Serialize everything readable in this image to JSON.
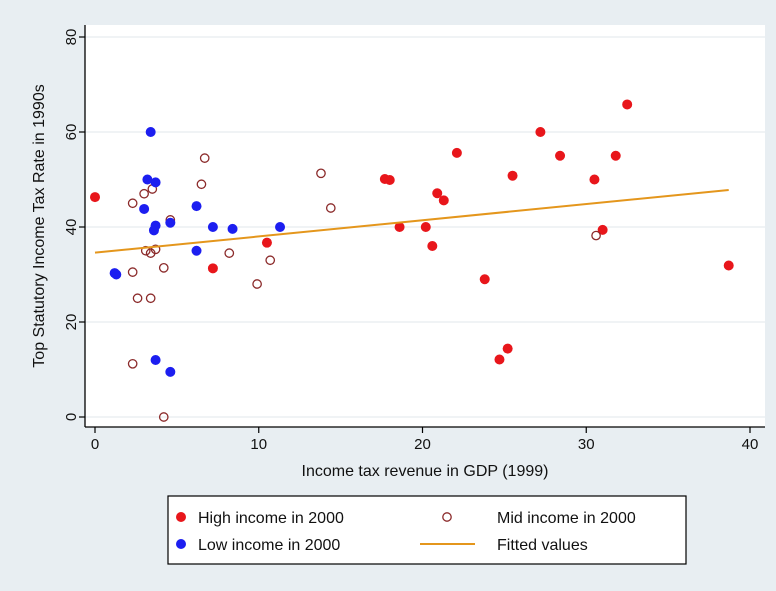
{
  "chart_data": {
    "type": "scatter",
    "title": "",
    "xlabel": "Income tax revenue in GDP (1999)",
    "ylabel": "Top Statutory Income Tax Rate in 1990s",
    "xlim": [
      0,
      40
    ],
    "ylim": [
      0,
      80
    ],
    "xticks": [
      "0",
      "10",
      "20",
      "30",
      "40"
    ],
    "yticks": [
      "0",
      "20",
      "40",
      "60",
      "80"
    ],
    "grid": "horizontal",
    "legend_position": "bottom",
    "colors": {
      "high": "#e8161b",
      "mid": "#8b2a2a",
      "low": "#1c1ef0",
      "fit": "#e4961c",
      "plot_bg": "#ffffff",
      "outer_bg": "#e8eef2"
    },
    "series": [
      {
        "name": "High income in 2000",
        "marker": "filled",
        "points": [
          [
            0,
            46.3
          ],
          [
            7.2,
            31.3
          ],
          [
            10.5,
            36.7
          ],
          [
            17.7,
            50.1
          ],
          [
            18.0,
            49.9
          ],
          [
            18.6,
            40
          ],
          [
            20.2,
            40
          ],
          [
            20.6,
            36
          ],
          [
            20.9,
            47.1
          ],
          [
            21.3,
            45.6
          ],
          [
            22.1,
            55.6
          ],
          [
            23.8,
            29
          ],
          [
            24.7,
            12.1
          ],
          [
            25.2,
            14.4
          ],
          [
            25.5,
            50.8
          ],
          [
            27.2,
            60
          ],
          [
            28.4,
            55
          ],
          [
            30.5,
            50
          ],
          [
            31,
            39.4
          ],
          [
            31.8,
            55
          ],
          [
            32.5,
            65.8
          ],
          [
            38.7,
            31.9
          ]
        ]
      },
      {
        "name": "Mid income in 2000",
        "marker": "hollow",
        "points": [
          [
            2.3,
            45
          ],
          [
            2.3,
            30.5
          ],
          [
            2.3,
            11.2
          ],
          [
            2.6,
            25
          ],
          [
            3.0,
            47
          ],
          [
            3.1,
            35
          ],
          [
            3.4,
            34.5
          ],
          [
            3.4,
            25
          ],
          [
            3.5,
            48
          ],
          [
            3.7,
            35.3
          ],
          [
            4.2,
            31.4
          ],
          [
            4.2,
            0
          ],
          [
            4.6,
            41.5
          ],
          [
            6.5,
            49
          ],
          [
            6.7,
            54.5
          ],
          [
            8.2,
            34.5
          ],
          [
            9.9,
            28
          ],
          [
            10.7,
            33
          ],
          [
            13.8,
            51.3
          ],
          [
            14.4,
            44
          ],
          [
            30.6,
            38.2
          ]
        ]
      },
      {
        "name": "Low income in 2000",
        "marker": "filled",
        "points": [
          [
            1.2,
            30.3
          ],
          [
            1.3,
            30
          ],
          [
            3.0,
            43.8
          ],
          [
            3.2,
            50
          ],
          [
            3.4,
            60
          ],
          [
            3.6,
            39.3
          ],
          [
            3.7,
            40.3
          ],
          [
            3.7,
            49.4
          ],
          [
            3.7,
            12
          ],
          [
            4.6,
            40.9
          ],
          [
            4.6,
            9.5
          ],
          [
            6.2,
            35
          ],
          [
            6.2,
            44.4
          ],
          [
            7.2,
            40
          ],
          [
            8.4,
            39.6
          ],
          [
            11.3,
            40
          ]
        ]
      },
      {
        "name": "Fitted values",
        "type": "line",
        "points": [
          [
            0,
            34.6
          ],
          [
            38.7,
            47.8
          ]
        ]
      }
    ]
  }
}
